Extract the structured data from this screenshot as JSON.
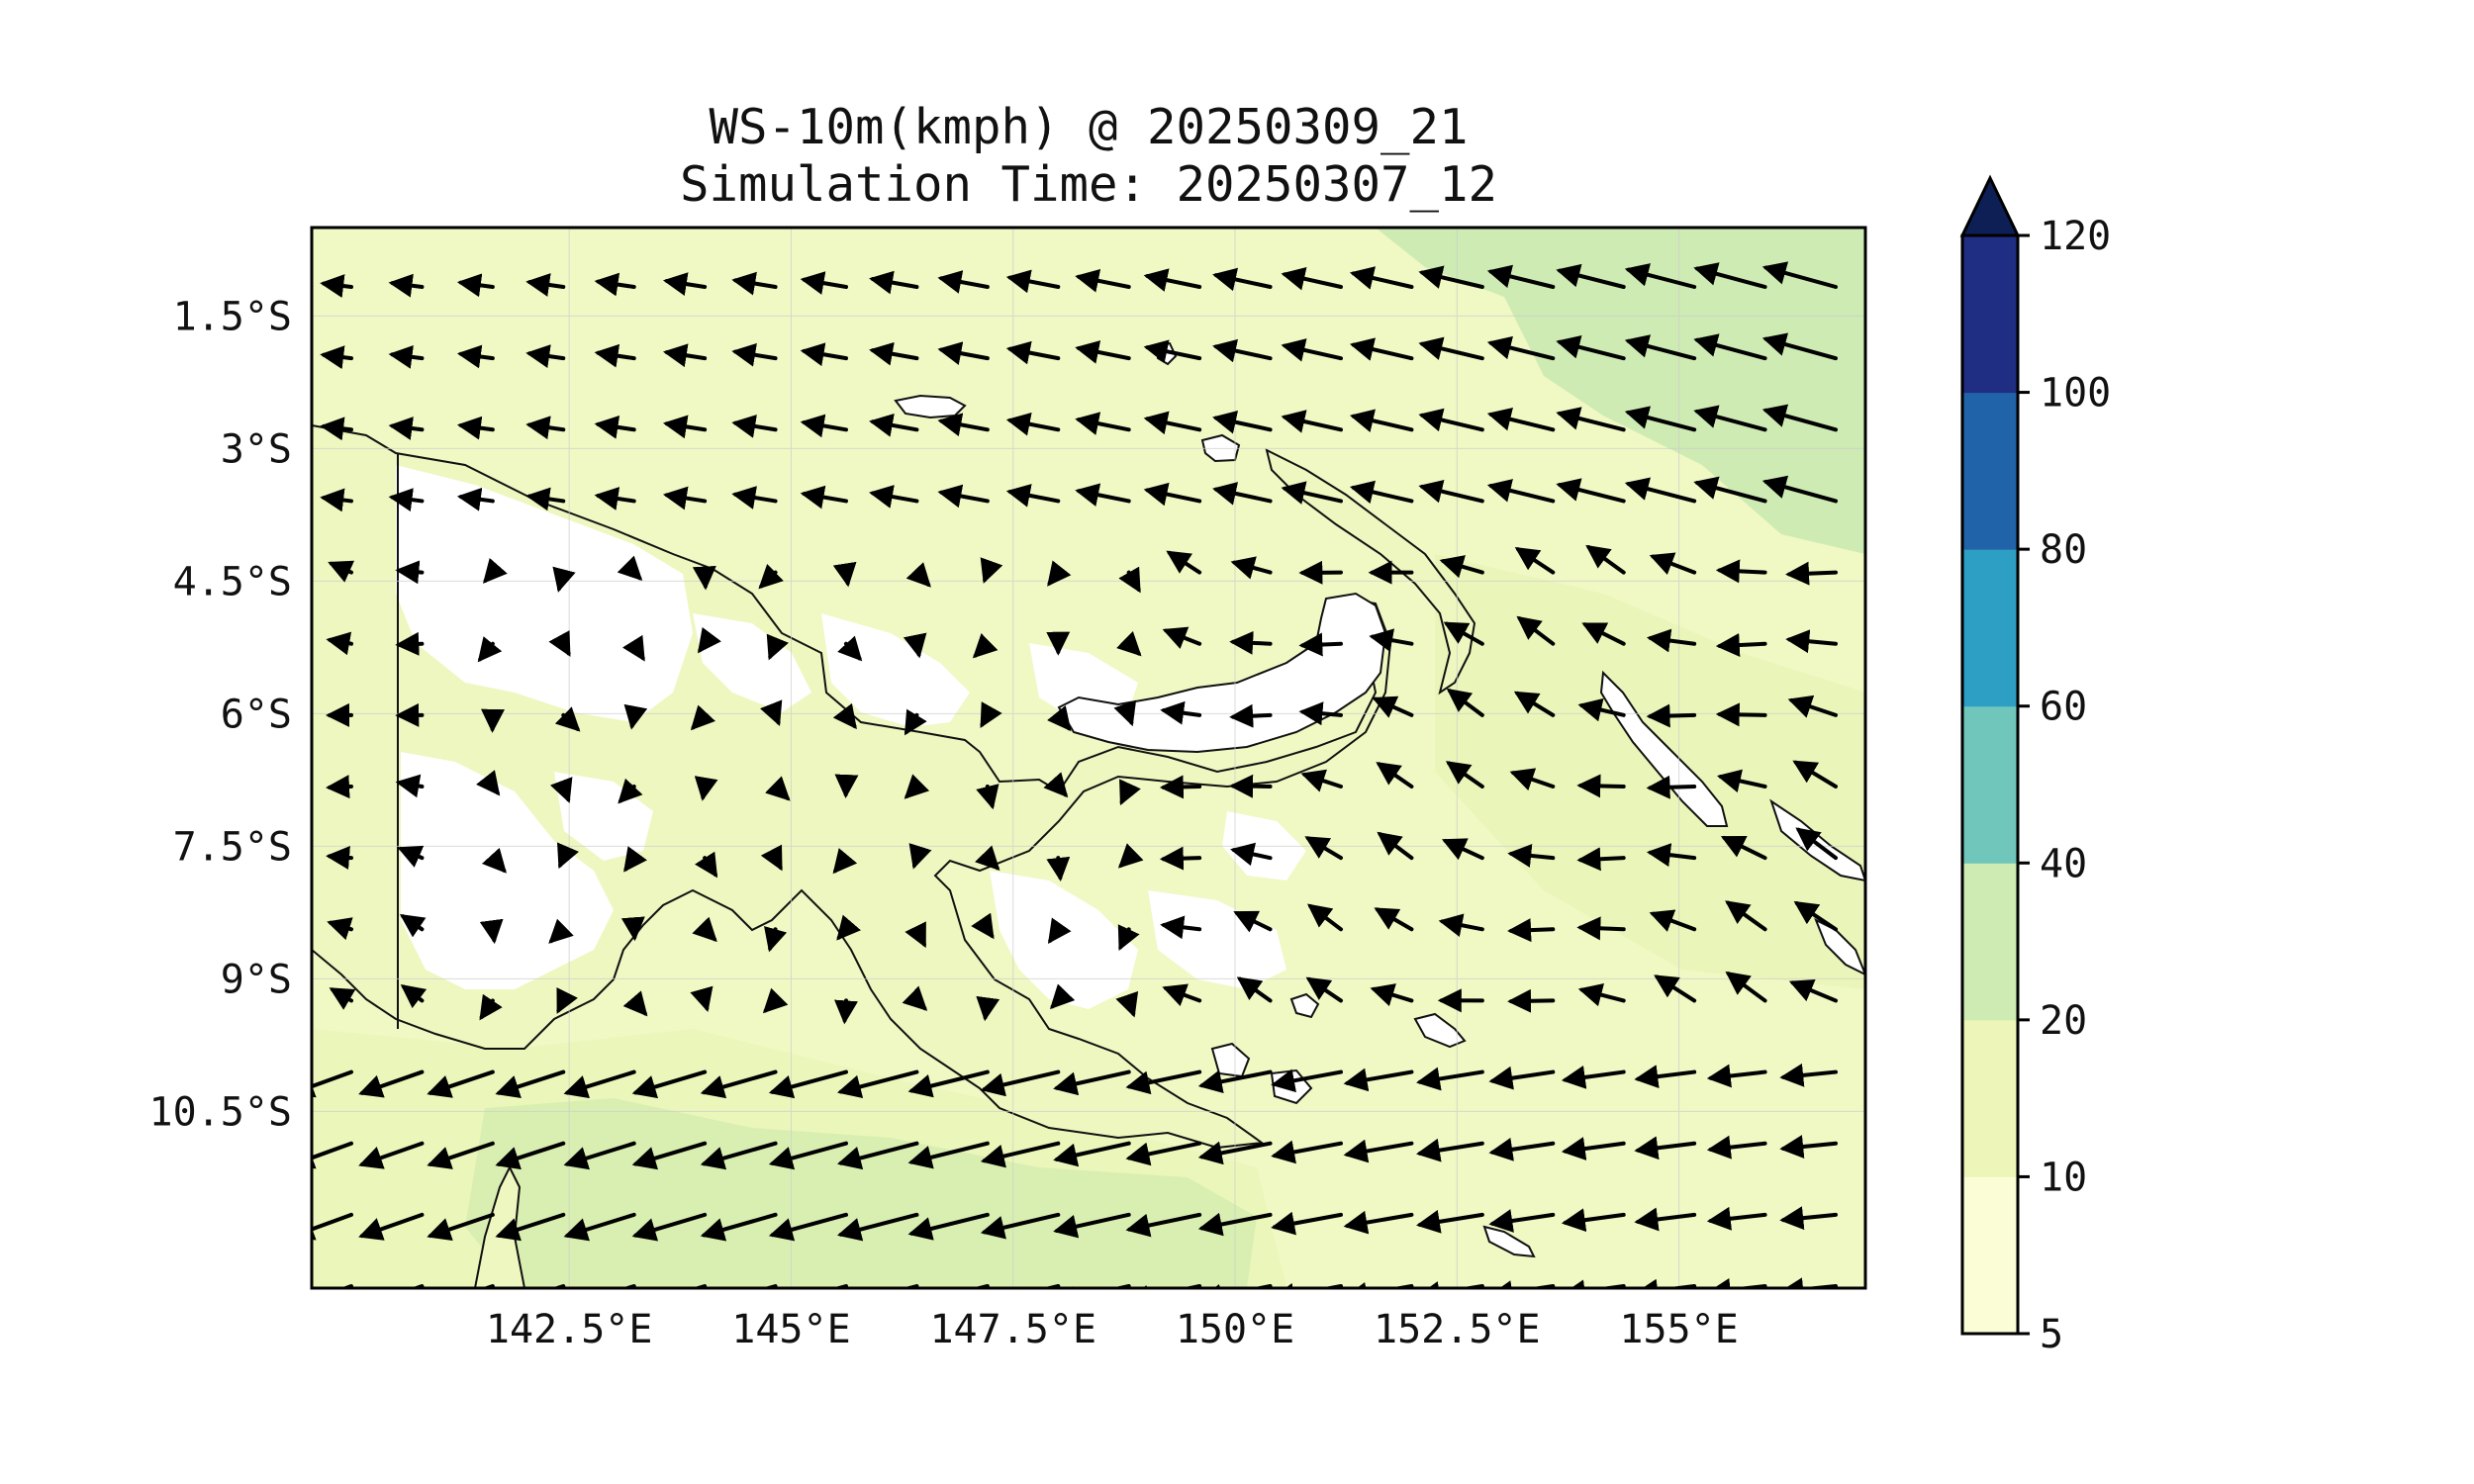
{
  "title": {
    "line1": "WS-10m(kmph) @ 20250309_21",
    "line2": "Simulation Time: 20250307_12"
  },
  "map": {
    "region": "Papua New Guinea",
    "lon_range": [
      139.6,
      157.1
    ],
    "lat_range": [
      -12.5,
      -0.5
    ],
    "x_ticks": [
      {
        "value": 142.5,
        "label": "142.5°E"
      },
      {
        "value": 145,
        "label": "145°E"
      },
      {
        "value": 147.5,
        "label": "147.5°E"
      },
      {
        "value": 150,
        "label": "150°E"
      },
      {
        "value": 152.5,
        "label": "152.5°E"
      },
      {
        "value": 155,
        "label": "155°E"
      }
    ],
    "y_ticks": [
      {
        "value": -1.5,
        "label": "1.5°S"
      },
      {
        "value": -3,
        "label": "3°S"
      },
      {
        "value": -4.5,
        "label": "4.5°S"
      },
      {
        "value": -6,
        "label": "6°S"
      },
      {
        "value": -7.5,
        "label": "7.5°S"
      },
      {
        "value": -9,
        "label": "9°S"
      },
      {
        "value": -10.5,
        "label": "10.5°S"
      }
    ],
    "grid": true,
    "quiver_grid": {
      "cols": 22,
      "rows": 15
    }
  },
  "colorbar": {
    "levels": [
      5,
      10,
      20,
      40,
      60,
      80,
      100,
      120
    ],
    "colors": [
      "#fbfdd6",
      "#edf6b8",
      "#cdebb3",
      "#70c6bb",
      "#2d9fc4",
      "#2163a9",
      "#1f2e82"
    ],
    "extend_color": "#0e1f55",
    "extend": "max",
    "labels": [
      "5",
      "10",
      "20",
      "40",
      "60",
      "80",
      "100",
      "120"
    ]
  },
  "colors": {
    "ocean_light": "#f3f9c8",
    "ocean_mid": "#eaf5b6",
    "strong_wind": "#cdebb3",
    "land_calm": "#ffffff",
    "coastline": "#111111",
    "arrow": "#000000"
  }
}
